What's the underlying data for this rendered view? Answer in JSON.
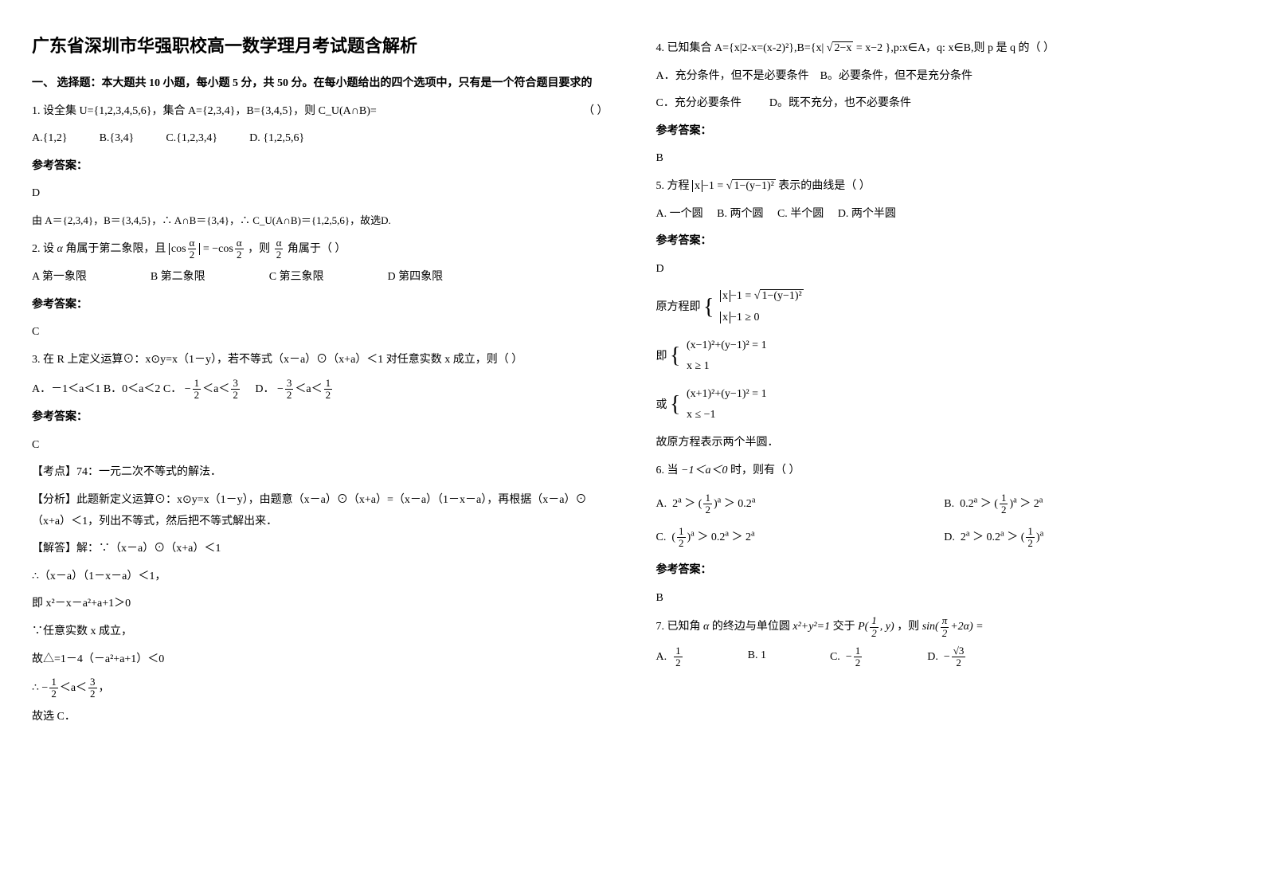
{
  "title": "广东省深圳市华强职校高一数学理月考试题含解析",
  "part1_heading": "一、 选择题：本大题共 10 小题，每小题 5 分，共 50 分。在每小题给出的四个选项中，只有是一个符合题目要求的",
  "ref_label": "参考答案：",
  "q1": {
    "stem": "1. 设全集 U={1,2,3,4,5,6}，集合 A={2,3,4}，B={3,4,5}，则 C_U(A∩B)=",
    "blank": "（  ）",
    "opts": {
      "A": "A.{1,2}",
      "B": "B.{3,4}",
      "C": "C.{1,2,3,4}",
      "D": "D. {1,2,5,6}"
    },
    "ans": "D",
    "expl": "由 A＝{2,3,4}，B＝{3,4,5}，∴ A∩B＝{3,4}，∴ C_U(A∩B)＝{1,2,5,6}，故选D."
  },
  "q2": {
    "pre": "2. 设",
    "cond": " 角属于第二象限，且",
    "post": "，则 ",
    "tail": " 角属于（        ）",
    "opts": {
      "A": "A    第一象限",
      "B": "B    第二象限",
      "C": "C    第三象限",
      "D": "D    第四象限"
    },
    "ans": "C"
  },
  "q3": {
    "stem": "3. 在 R 上定义运算⊙：x⊙y=x（1－y），若不等式（x－a）⊙（x+a）＜1 对任意实数 x 成立，则（     ）",
    "optA_pre": "A．－1＜a＜1  B．0＜a＜2   C．",
    "optD_pre": "D．",
    "ans": "C",
    "kp_label": "【考点】74：一元二次不等式的解法．",
    "fx_label": "【分析】此题新定义运算⊙：x⊙y=x（1－y），由题意（x－a）⊙（x+a）=（x－a）（1－x－a），再根据（x－a）⊙（x+a）＜1，列出不等式，然后把不等式解出来．",
    "ans_label": "【解答】解：∵（x－a）⊙（x+a）＜1",
    "l1": "∴（x－a）（1－x－a）＜1，",
    "l2": "即 x²－x－a²+a+1＞0",
    "l3": "∵任意实数 x 成立，",
    "l4": "故△=1－4（－a²+a+1）＜0",
    "l5_pre": "∴ ",
    "l6": "故选 C．"
  },
  "q4": {
    "stem_pre": "4. 已知集合 A={x|2-x=(x-2)²},B={x| ",
    "stem_post": " },p:x∈A，q: x∈B,则 p 是 q 的（  ）",
    "opts": {
      "A": "A．充分条件，但不是必要条件",
      "B": "B。必要条件，但不是充分条件",
      "C": "C．充分必要条件",
      "D": "D。既不充分，也不必要条件"
    },
    "ans": "B"
  },
  "q5": {
    "stem_pre": "5. 方程",
    "stem_post": " 表示的曲线是（    ）",
    "opts": {
      "A": "A. 一个圆",
      "B": "B. 两个圆",
      "C": "C. 半个圆",
      "D": "D. 两个半圆"
    },
    "ans": "D",
    "l0": "原方程即 ",
    "l1": "即 ",
    "l2": "或 ",
    "l3": "故原方程表示两个半圆．"
  },
  "q6": {
    "stem_pre": "6. 当",
    "stem_post": "时，则有（        ）",
    "ans": "B"
  },
  "q7": {
    "stem_pre": "7. 已知角",
    "stem_mid1": "的终边与单位圆",
    "stem_mid2": "交于",
    "stem_mid3": "，则",
    "opts": {
      "A": "A.",
      "B": "B. 1",
      "C": "C.",
      "D": "D."
    }
  }
}
